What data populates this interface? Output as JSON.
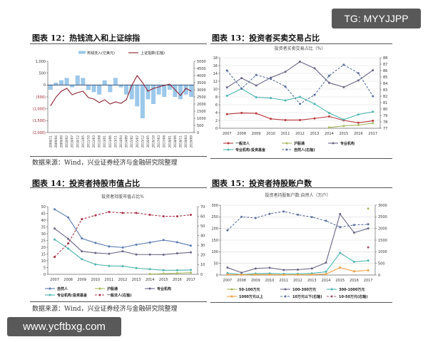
{
  "watermarks": {
    "top": "TG: MYYJJPP",
    "bottom": "www.ycftbxg.com"
  },
  "figures": [
    {
      "heading": "图表 12：热钱流入和上证综指"
    },
    {
      "heading": "图表 13：投资者买卖交易占比"
    },
    {
      "heading": "图表 14：投资者持股市值占比"
    },
    {
      "heading": "图表 15：投资者持股账户数"
    }
  ],
  "sources": [
    "数据来源：Wind，兴业证券经济与金融研究院整理",
    "数据来源：Wind，兴业证券经济与金融研究院整理"
  ],
  "chart_data": [
    {
      "type": "bar+line",
      "title": "",
      "categories": [
        "2008/11",
        "2009/04",
        "2009/09",
        "2010/02",
        "2010/07",
        "2010/12",
        "2011/05",
        "2011/10",
        "2012/03",
        "2012/08",
        "2013/01",
        "2013/06",
        "2013/11",
        "2014/04",
        "2014/09",
        "2015/02",
        "2015/07",
        "2015/12",
        "2016/05",
        "2016/10",
        "2017/03",
        "2017/08",
        "2018/01",
        "2018/06",
        "2018/11",
        "2019/04",
        "2019/09"
      ],
      "ylim": [
        -2000,
        1000
      ],
      "yticks": [
        1000,
        500,
        0,
        -500,
        -1000,
        -1500,
        -2000
      ],
      "ytick_labels": [
        "1,000",
        "500",
        "0",
        "(500)",
        "(1,000)",
        "(1,500)",
        "(2,000)"
      ],
      "ylim_right": [
        0,
        5000
      ],
      "yticks_right": [
        5000,
        4500,
        4000,
        3500,
        3000,
        2500,
        2000,
        1500,
        1000,
        500,
        0
      ],
      "grid": false,
      "legend": "top",
      "series": [
        {
          "name": "热钱流入(亿美元)",
          "kind": "bar",
          "axis": "left",
          "color": "#9cc8ea",
          "values": [
            -200,
            100,
            200,
            300,
            -100,
            400,
            300,
            -200,
            -300,
            -400,
            200,
            -300,
            300,
            -100,
            -400,
            -600,
            -900,
            -1400,
            -600,
            -800,
            -400,
            -500,
            -200,
            -500,
            -600,
            -400,
            -500
          ]
        },
        {
          "name": "上证指数(右轴)",
          "kind": "line",
          "axis": "right",
          "color": "#8b2332",
          "values": [
            1870,
            2480,
            2900,
            3100,
            2650,
            2800,
            2900,
            2450,
            2350,
            2100,
            2300,
            2000,
            2150,
            2050,
            2300,
            3300,
            4000,
            3500,
            2900,
            3100,
            3200,
            3300,
            3400,
            3000,
            2600,
            3100,
            2900
          ]
        }
      ]
    },
    {
      "type": "line",
      "title": "投资者买卖交易占比（%）",
      "categories": [
        "2007",
        "2008",
        "2009",
        "2010",
        "2011",
        "2012",
        "2013",
        "2014",
        "2015",
        "2016",
        "2017"
      ],
      "ylim": [
        0,
        18
      ],
      "yticks": [
        0,
        2,
        4,
        6,
        8,
        10,
        12,
        14,
        16,
        18
      ],
      "ylim_right": [
        77,
        88
      ],
      "yticks_right": [
        77,
        78,
        79,
        80,
        81,
        82,
        83,
        84,
        85,
        86,
        87,
        88
      ],
      "grid": true,
      "legend": "bottom",
      "series": [
        {
          "name": "一般法人",
          "axis": "left",
          "color": "#b8383b",
          "dashed": false,
          "values": [
            3.6,
            3.9,
            3.8,
            2.4,
            2.1,
            2.1,
            2.5,
            3.0,
            2.0,
            1.4,
            1.9
          ]
        },
        {
          "name": "沪股通",
          "axis": "left",
          "color": "#a9b95e",
          "dashed": false,
          "values": [
            null,
            null,
            null,
            null,
            null,
            null,
            null,
            0.2,
            0.6,
            0.8,
            1.3
          ]
        },
        {
          "name": "专业机构",
          "axis": "left",
          "color": "#6a6688",
          "dashed": false,
          "values": [
            10.4,
            12.8,
            10.9,
            12.9,
            14.4,
            17.0,
            15.3,
            11.6,
            10.5,
            12.2,
            14.8
          ]
        },
        {
          "name": "专业机构:投资基金",
          "axis": "left",
          "color": "#4cb5b0",
          "dashed": false,
          "values": [
            8.3,
            10.1,
            7.9,
            7.7,
            7.1,
            8.0,
            6.2,
            3.9,
            2.2,
            3.5,
            4.2
          ]
        },
        {
          "name": "自然人(右轴)",
          "axis": "right",
          "color": "#5a6f9c",
          "dashed": true,
          "values": [
            86.0,
            83.2,
            85.3,
            84.7,
            83.5,
            80.8,
            82.2,
            85.2,
            86.9,
            85.6,
            82.0
          ]
        }
      ]
    },
    {
      "type": "line",
      "title": "投资者持股市值占比%",
      "categories": [
        "2007",
        "2008",
        "2009",
        "2010",
        "2011",
        "2012",
        "2013",
        "2014",
        "2015",
        "2016",
        "2017"
      ],
      "ylim": [
        0,
        50
      ],
      "yticks": [
        0,
        5,
        10,
        15,
        20,
        25,
        30,
        35,
        40,
        45,
        50
      ],
      "ylim_right": [
        0,
        70
      ],
      "yticks_right": [
        0,
        10,
        20,
        30,
        40,
        50,
        60,
        70
      ],
      "grid": false,
      "legend": "bottom",
      "series": [
        {
          "name": "自然人",
          "axis": "left",
          "color": "#5b7bb0",
          "dashed": false,
          "values": [
            48,
            42,
            26.5,
            23.2,
            20.6,
            19.8,
            21.9,
            23.5,
            25.3,
            23.7,
            21.2
          ]
        },
        {
          "name": "沪股通",
          "axis": "left",
          "color": "#a9b95e",
          "dashed": false,
          "values": [
            null,
            null,
            null,
            null,
            null,
            null,
            null,
            0.2,
            0.5,
            0.8,
            1.2
          ]
        },
        {
          "name": "专业机构",
          "axis": "left",
          "color": "#6a6688",
          "dashed": false,
          "values": [
            33.8,
            26.2,
            17.0,
            15.8,
            15.2,
            17.0,
            14.6,
            14.6,
            14.5,
            15.5,
            16.2
          ]
        },
        {
          "name": "专业机构:投资基金",
          "axis": "left",
          "color": "#4cb5b0",
          "dashed": false,
          "values": [
            25.7,
            19.0,
            11.2,
            7.3,
            6.2,
            6.0,
            4.6,
            3.8,
            3.0,
            3.0,
            3.2
          ]
        },
        {
          "name": "一般法人(右轴)",
          "axis": "right",
          "color": "#a8324a",
          "dashed": true,
          "values": [
            18,
            32,
            57,
            61,
            64.5,
            63.5,
            63.5,
            61.5,
            60,
            60,
            61.5
          ]
        }
      ]
    },
    {
      "type": "line",
      "title": "投资者持股账户数:自然人（万户）",
      "categories": [
        "2007",
        "2008",
        "2009",
        "2010",
        "2011",
        "2012",
        "2013",
        "2014",
        "2015",
        "2016",
        "2017"
      ],
      "ylim": [
        0,
        300
      ],
      "yticks": [
        0,
        50,
        100,
        150,
        200,
        250,
        300
      ],
      "ylim_right": [
        0,
        3000
      ],
      "yticks_right": [
        0,
        500,
        1000,
        1500,
        2000,
        2500,
        3000
      ],
      "grid": true,
      "legend": "bottom",
      "series": [
        {
          "name": "50-100万元",
          "axis": "left",
          "color": "#a9b95e",
          "dashed": false,
          "values": [
            null,
            null,
            null,
            null,
            null,
            null,
            null,
            null,
            null,
            null,
            285
          ]
        },
        {
          "name": "100-300万元",
          "axis": "left",
          "color": "#6a6688",
          "dashed": false,
          "values": [
            32,
            10,
            28,
            31,
            22,
            23,
            28,
            53,
            262,
            182,
            200
          ]
        },
        {
          "name": "300-1000万元",
          "axis": "left",
          "color": "#4cb5b0",
          "dashed": false,
          "values": [
            8,
            2,
            6,
            7,
            5,
            5,
            7,
            14,
            95,
            57,
            62
          ]
        },
        {
          "name": "1000万元以上",
          "axis": "left",
          "color": "#f0a040",
          "dashed": false,
          "values": [
            2,
            1,
            2,
            2,
            1,
            1,
            2,
            4,
            32,
            16,
            20
          ]
        },
        {
          "name": "10万元以下(右轴)",
          "axis": "right",
          "color": "#5a6f9c",
          "dashed": true,
          "values": [
            1920,
            2500,
            2450,
            2630,
            2730,
            2590,
            2490,
            2330,
            2060,
            2150,
            2180
          ]
        },
        {
          "name": "10-50万元(右轴)",
          "axis": "right",
          "color": "#a05070",
          "dashed": true,
          "values": [
            null,
            null,
            null,
            null,
            null,
            null,
            null,
            null,
            null,
            null,
            1190
          ]
        }
      ]
    }
  ]
}
